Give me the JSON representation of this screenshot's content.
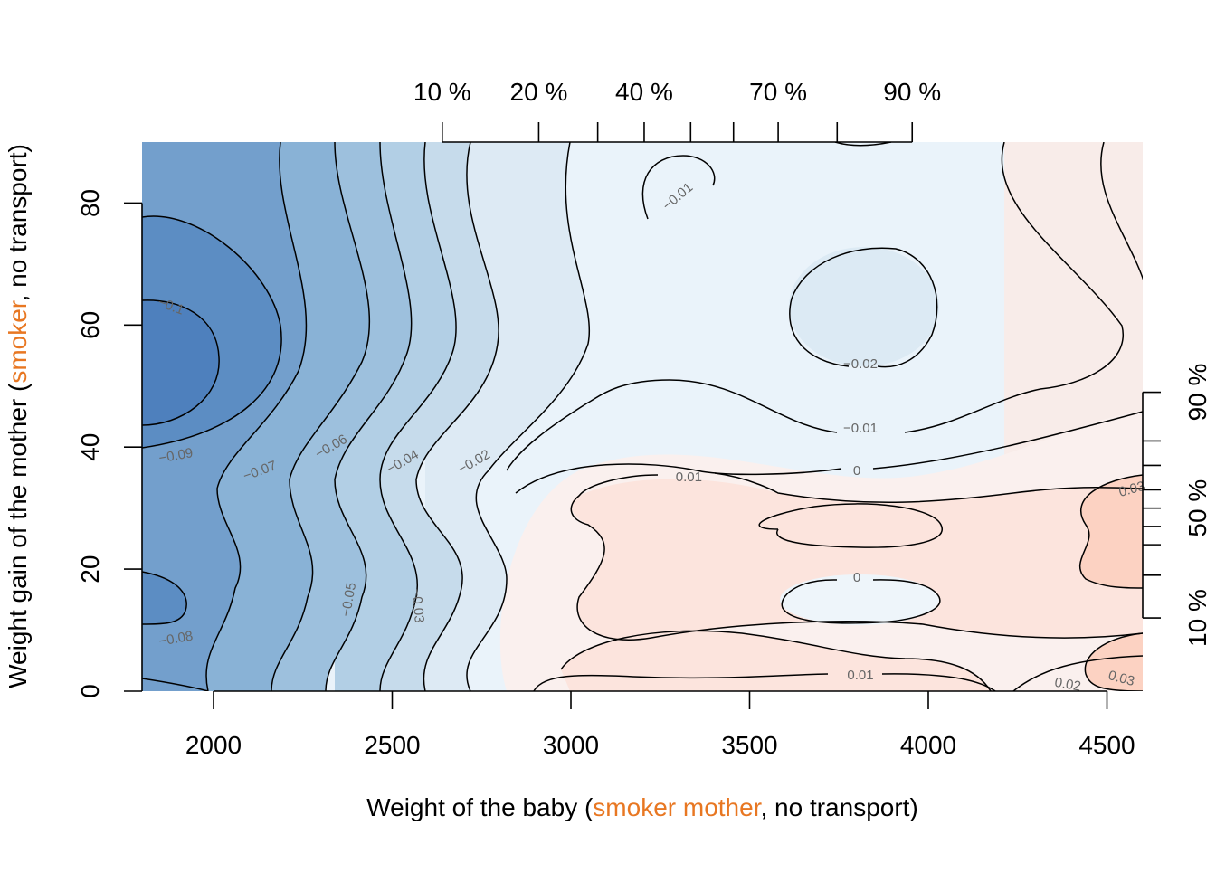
{
  "chart_data": {
    "type": "contour",
    "title": "",
    "xlabel": {
      "prefix": "Weight of the baby (",
      "highlight": "smoker mother",
      "suffix": ", no transport)"
    },
    "ylabel": {
      "prefix": "Weight gain of the mother (",
      "highlight": "smoker",
      "suffix": ", no transport)"
    },
    "highlight_color": "#E87722",
    "xlim": [
      1800,
      4600
    ],
    "ylim": [
      0,
      90
    ],
    "x_ticks": [
      2000,
      2500,
      3000,
      3500,
      4000,
      4500
    ],
    "x_tick_labels": [
      "2000",
      "2500",
      "3000",
      "3500",
      "4000",
      "4500"
    ],
    "y_ticks": [
      0,
      20,
      40,
      60,
      80
    ],
    "y_tick_labels": [
      "0",
      "20",
      "40",
      "60",
      "80"
    ],
    "top_quantile_ticks": [
      2640,
      2910,
      3075,
      3205,
      3335,
      3455,
      3580,
      3745,
      3955
    ],
    "top_quantile_labels": [
      {
        "label": "10 %",
        "x": 2640
      },
      {
        "label": "20 %",
        "x": 2910
      },
      {
        "label": "40 %",
        "x": 3205
      },
      {
        "label": "70 %",
        "x": 3580
      },
      {
        "label": "90 %",
        "x": 3955
      }
    ],
    "right_quantile_ticks": [
      12,
      19,
      24,
      27,
      30,
      33,
      37,
      41,
      49
    ],
    "right_quantile_labels": [
      {
        "label": "10 %",
        "y": 12
      },
      {
        "label": "50 %",
        "y": 30
      },
      {
        "label": "90 %",
        "y": 49
      }
    ],
    "contour_levels": [
      -0.1,
      -0.09,
      -0.08,
      -0.07,
      -0.06,
      -0.05,
      -0.04,
      -0.03,
      -0.02,
      -0.01,
      0,
      0.01,
      0.02,
      0.03
    ],
    "contour_labels": [
      {
        "text": "−0.1",
        "x": 1880,
        "y": 63,
        "rot": 20
      },
      {
        "text": "−0.09",
        "x": 1895,
        "y": 38.5,
        "rot": -10
      },
      {
        "text": "−0.08",
        "x": 1895,
        "y": 8.5,
        "rot": -10
      },
      {
        "text": "−0.07",
        "x": 2130,
        "y": 36,
        "rot": -20
      },
      {
        "text": "−0.06",
        "x": 2330,
        "y": 40,
        "rot": -30
      },
      {
        "text": "−0.05",
        "x": 2380,
        "y": 15,
        "rot": -80
      },
      {
        "text": "−0.04",
        "x": 2530,
        "y": 37.5,
        "rot": -30
      },
      {
        "text": "−0.03",
        "x": 2570,
        "y": 14,
        "rot": 85
      },
      {
        "text": "−0.02",
        "x": 2730,
        "y": 37.5,
        "rot": -30
      },
      {
        "text": "−0.01",
        "x": 3300,
        "y": 81,
        "rot": -40
      },
      {
        "text": "−0.02",
        "x": 3810,
        "y": 53.5,
        "rot": 0
      },
      {
        "text": "−0.01",
        "x": 3810,
        "y": 43,
        "rot": 0
      },
      {
        "text": "0",
        "x": 3800,
        "y": 36,
        "rot": 0
      },
      {
        "text": "0.01",
        "x": 3330,
        "y": 35,
        "rot": 0
      },
      {
        "text": "0",
        "x": 3800,
        "y": 18.5,
        "rot": 0
      },
      {
        "text": "0.01",
        "x": 3810,
        "y": 2.5,
        "rot": 0
      },
      {
        "text": "0.03",
        "x": 4570,
        "y": 33,
        "rot": -15
      },
      {
        "text": "0.02",
        "x": 4390,
        "y": 1,
        "rot": 10
      },
      {
        "text": "0.03",
        "x": 4540,
        "y": 2,
        "rot": 15
      }
    ],
    "grid": false,
    "legend": "none"
  }
}
